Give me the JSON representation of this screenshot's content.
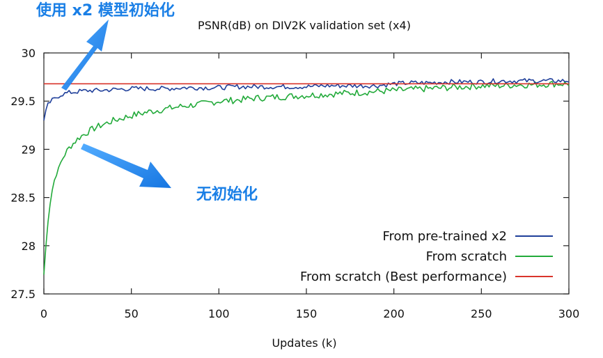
{
  "chart_data": {
    "type": "line",
    "title": "PSNR(dB) on DIV2K validation set (x4)",
    "xlabel": "Updates (k)",
    "ylabel": "",
    "xlim": [
      0,
      300
    ],
    "ylim": [
      27.5,
      30
    ],
    "xticks": [
      0,
      50,
      100,
      150,
      200,
      250,
      300
    ],
    "yticks": [
      27.5,
      28,
      28.5,
      29,
      29.5,
      30
    ],
    "ytick_labels": [
      "27.5",
      "28",
      "28.5",
      "29",
      "29.5",
      "30"
    ],
    "grid": false,
    "legend_position": "bottom-right",
    "series": [
      {
        "name": "From pre-trained x2",
        "color": "#1f3f9a",
        "x": [
          0,
          2,
          4,
          6,
          8,
          10,
          15,
          20,
          25,
          30,
          40,
          50,
          60,
          70,
          80,
          90,
          100,
          110,
          120,
          130,
          140,
          150,
          160,
          170,
          180,
          190,
          195,
          200,
          210,
          220,
          230,
          240,
          250,
          260,
          270,
          280,
          290,
          300
        ],
        "y": [
          29.3,
          29.45,
          29.5,
          29.52,
          29.55,
          29.57,
          29.59,
          29.6,
          29.61,
          29.61,
          29.62,
          29.63,
          29.63,
          29.63,
          29.64,
          29.64,
          29.64,
          29.65,
          29.65,
          29.65,
          29.65,
          29.65,
          29.66,
          29.66,
          29.66,
          29.66,
          29.67,
          29.68,
          29.69,
          29.69,
          29.7,
          29.7,
          29.7,
          29.71,
          29.71,
          29.71,
          29.71,
          29.71
        ]
      },
      {
        "name": "From scratch",
        "color": "#22aa3a",
        "x": [
          0,
          1,
          2,
          3,
          4,
          5,
          6,
          8,
          10,
          12,
          15,
          20,
          25,
          30,
          40,
          50,
          60,
          70,
          80,
          90,
          100,
          110,
          120,
          130,
          140,
          150,
          160,
          170,
          180,
          190,
          200,
          210,
          220,
          230,
          240,
          250,
          260,
          270,
          280,
          290,
          300
        ],
        "y": [
          27.7,
          27.95,
          28.2,
          28.35,
          28.5,
          28.6,
          28.68,
          28.78,
          28.88,
          28.95,
          29.03,
          29.12,
          29.18,
          29.23,
          29.3,
          29.35,
          29.39,
          29.42,
          29.45,
          29.47,
          29.5,
          29.51,
          29.53,
          29.54,
          29.55,
          29.56,
          29.57,
          29.58,
          29.59,
          29.6,
          29.61,
          29.62,
          29.63,
          29.64,
          29.65,
          29.66,
          29.66,
          29.67,
          29.67,
          29.68,
          29.68
        ]
      },
      {
        "name": "From scratch (Best performance)",
        "color": "#d9342b",
        "x": [
          0,
          300
        ],
        "y": [
          29.68,
          29.68
        ]
      }
    ]
  },
  "annotations": {
    "pretrained_label": "使用 x2 模型初始化",
    "scratch_label": "无初始化",
    "color": "#1a7fe6"
  }
}
